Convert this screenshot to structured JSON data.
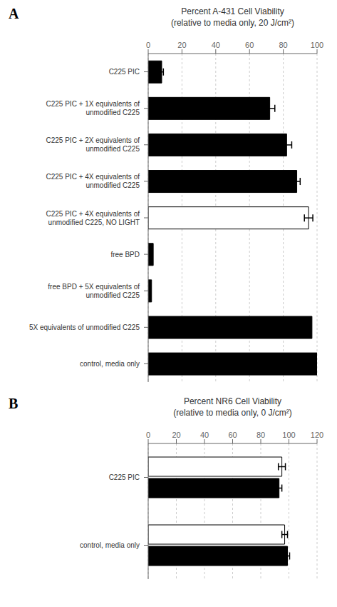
{
  "chart_data": [
    {
      "type": "bar",
      "orientation": "horizontal",
      "title": "Percent A-431 Cell Viability",
      "subtitle": "(relative to media only, 20 J/cm²)",
      "annotations": [
        "A"
      ],
      "categories": [
        "C225 PIC",
        "C225 PIC + 1X equivalents of\nunmodified C225",
        "C225 PIC + 2X equivalents of\nunmodified C225",
        "C225 PIC + 4X equivalents of\nunmodified C225",
        "C225 PIC + 4X equivalents of\nunmodified C225, NO LIGHT",
        "free BPD",
        "free BPD + 5X equivalents of\nunmodified C225",
        "5X equivalents of unmodified C225",
        "control, media only"
      ],
      "values": [
        8,
        72,
        82,
        88,
        95,
        3,
        2,
        97,
        100
      ],
      "errors": [
        1.0,
        3.0,
        3.0,
        2.0,
        2.5,
        0,
        0,
        0,
        0
      ],
      "colors": [
        "black",
        "black",
        "black",
        "black",
        "white",
        "black",
        "black",
        "black",
        "black"
      ],
      "xlim": [
        0,
        100
      ],
      "xticks": [
        0,
        20,
        40,
        60,
        80,
        100
      ],
      "grid": true
    },
    {
      "type": "bar",
      "orientation": "horizontal",
      "title": "Percent NR6 Cell Viability",
      "subtitle": "(relative to media only, 0 J/cm²)",
      "annotations": [
        "B"
      ],
      "categories": [
        "C225 PIC",
        "control, media only"
      ],
      "series": [
        {
          "color": "white",
          "values": [
            95,
            97
          ],
          "errors": [
            2.5,
            2.0
          ]
        },
        {
          "color": "black",
          "values": [
            93,
            99
          ],
          "errors": [
            2.0,
            1.5
          ]
        }
      ],
      "xlim": [
        0,
        120
      ],
      "xticks": [
        0,
        20,
        40,
        60,
        80,
        100,
        120
      ],
      "grid": true
    }
  ]
}
